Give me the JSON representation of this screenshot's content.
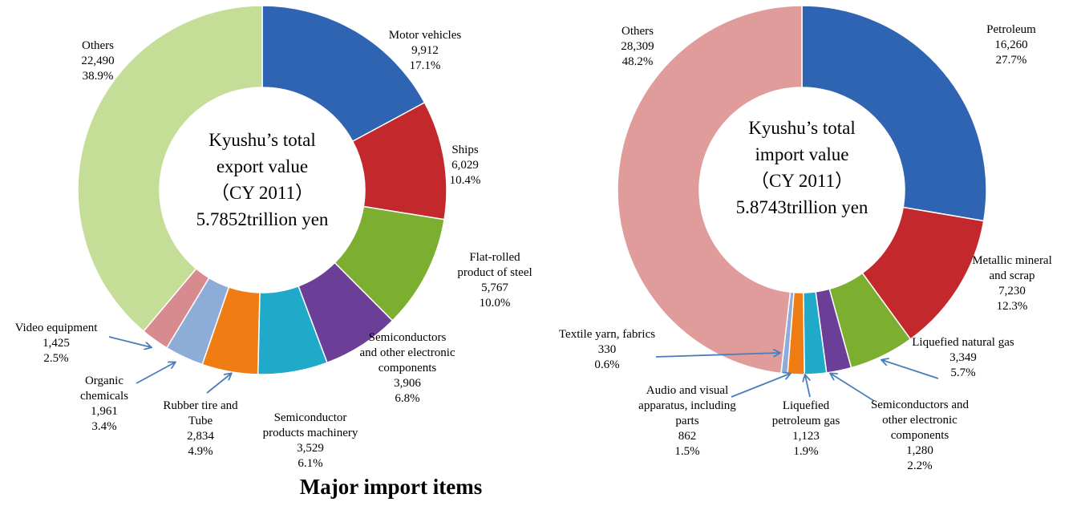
{
  "chart_data": [
    {
      "type": "donut",
      "center_text": [
        "Kyushu’s total",
        "export value",
        "（CY 2011）",
        "5.7852trillion yen"
      ],
      "categories": [
        "Motor vehicles",
        "Ships",
        "Flat-rolled product of steel",
        "Semiconductors and other electronic components",
        "Semiconductor products machinery",
        "Rubber tire and Tube",
        "Organic chemicals",
        "Video equipment",
        "Others"
      ],
      "values": [
        9912,
        6029,
        5767,
        3906,
        3529,
        2834,
        1961,
        1425,
        22490
      ],
      "value_labels": [
        "9,912",
        "6,029",
        "5,767",
        "3,906",
        "3,529",
        "2,834",
        "1,961",
        "1,425",
        "22,490"
      ],
      "share_labels": [
        "17.1%",
        "10.4%",
        "10.0%",
        "6.8%",
        "6.1%",
        "4.9%",
        "3.4%",
        "2.5%",
        "38.9%"
      ],
      "colors": [
        "#2f64b3",
        "#c3282d",
        "#7cae30",
        "#6b3f98",
        "#1eaac8",
        "#f07c14",
        "#8eacd8",
        "#d88b8f",
        "#c5de97"
      ]
    },
    {
      "type": "donut",
      "center_text": [
        "Kyushu’s total",
        "import value",
        "（CY 2011）",
        "5.8743trillion yen"
      ],
      "categories": [
        "Petroleum",
        "Metallic mineral and scrap",
        "Liquefied natural gas",
        "Semiconductors and other electronic components",
        "Liquefied petroleum gas",
        "Audio and visual apparatus, including parts",
        "Textile yarn, fabrics",
        "Others"
      ],
      "values": [
        16260,
        7230,
        3349,
        1280,
        1123,
        862,
        330,
        28309
      ],
      "value_labels": [
        "16,260",
        "7,230",
        "3,349",
        "1,280",
        "1,123",
        "862",
        "330",
        "28,309"
      ],
      "share_labels": [
        "27.7%",
        "12.3%",
        "5.7%",
        "2.2%",
        "1.9%",
        "1.5%",
        "0.6%",
        "48.2%"
      ],
      "colors": [
        "#2f64b3",
        "#c3282d",
        "#7cae30",
        "#6b3f98",
        "#1eaac8",
        "#f07c14",
        "#8eacd8",
        "#e09b9b"
      ]
    }
  ],
  "caption": "Major  import items"
}
